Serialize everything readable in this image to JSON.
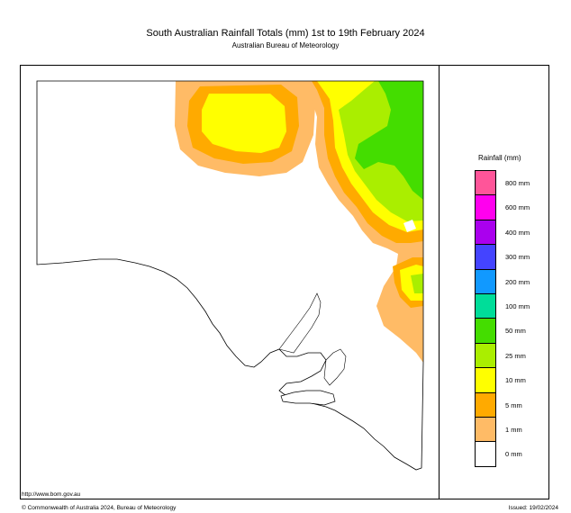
{
  "header": {
    "title": "South Australian Rainfall Totals (mm)   1st to 19th February 2024",
    "subtitle": "Australian Bureau of Meteorology"
  },
  "legend": {
    "title": "Rainfall (mm)",
    "bins": [
      {
        "label": "800 mm",
        "color": "#ff5599"
      },
      {
        "label": "600 mm",
        "color": "#ff00ee"
      },
      {
        "label": "400 mm",
        "color": "#aa00ee"
      },
      {
        "label": "300 mm",
        "color": "#4444ff"
      },
      {
        "label": "200 mm",
        "color": "#1199ff"
      },
      {
        "label": "100 mm",
        "color": "#00dd99"
      },
      {
        "label": "50 mm",
        "color": "#44dd00"
      },
      {
        "label": "25 mm",
        "color": "#aaee00"
      },
      {
        "label": "10 mm",
        "color": "#ffff00"
      },
      {
        "label": "5 mm",
        "color": "#ffaa00"
      },
      {
        "label": "1 mm",
        "color": "#ffbb66"
      },
      {
        "label": "0 mm",
        "color": "#ffffff"
      }
    ]
  },
  "footer": {
    "url": "http://www.bom.gov.au",
    "copyright": "© Commonwealth of Australia 2024, Bureau of Meteorology",
    "issued": "Issued: 19/02/2024"
  }
}
